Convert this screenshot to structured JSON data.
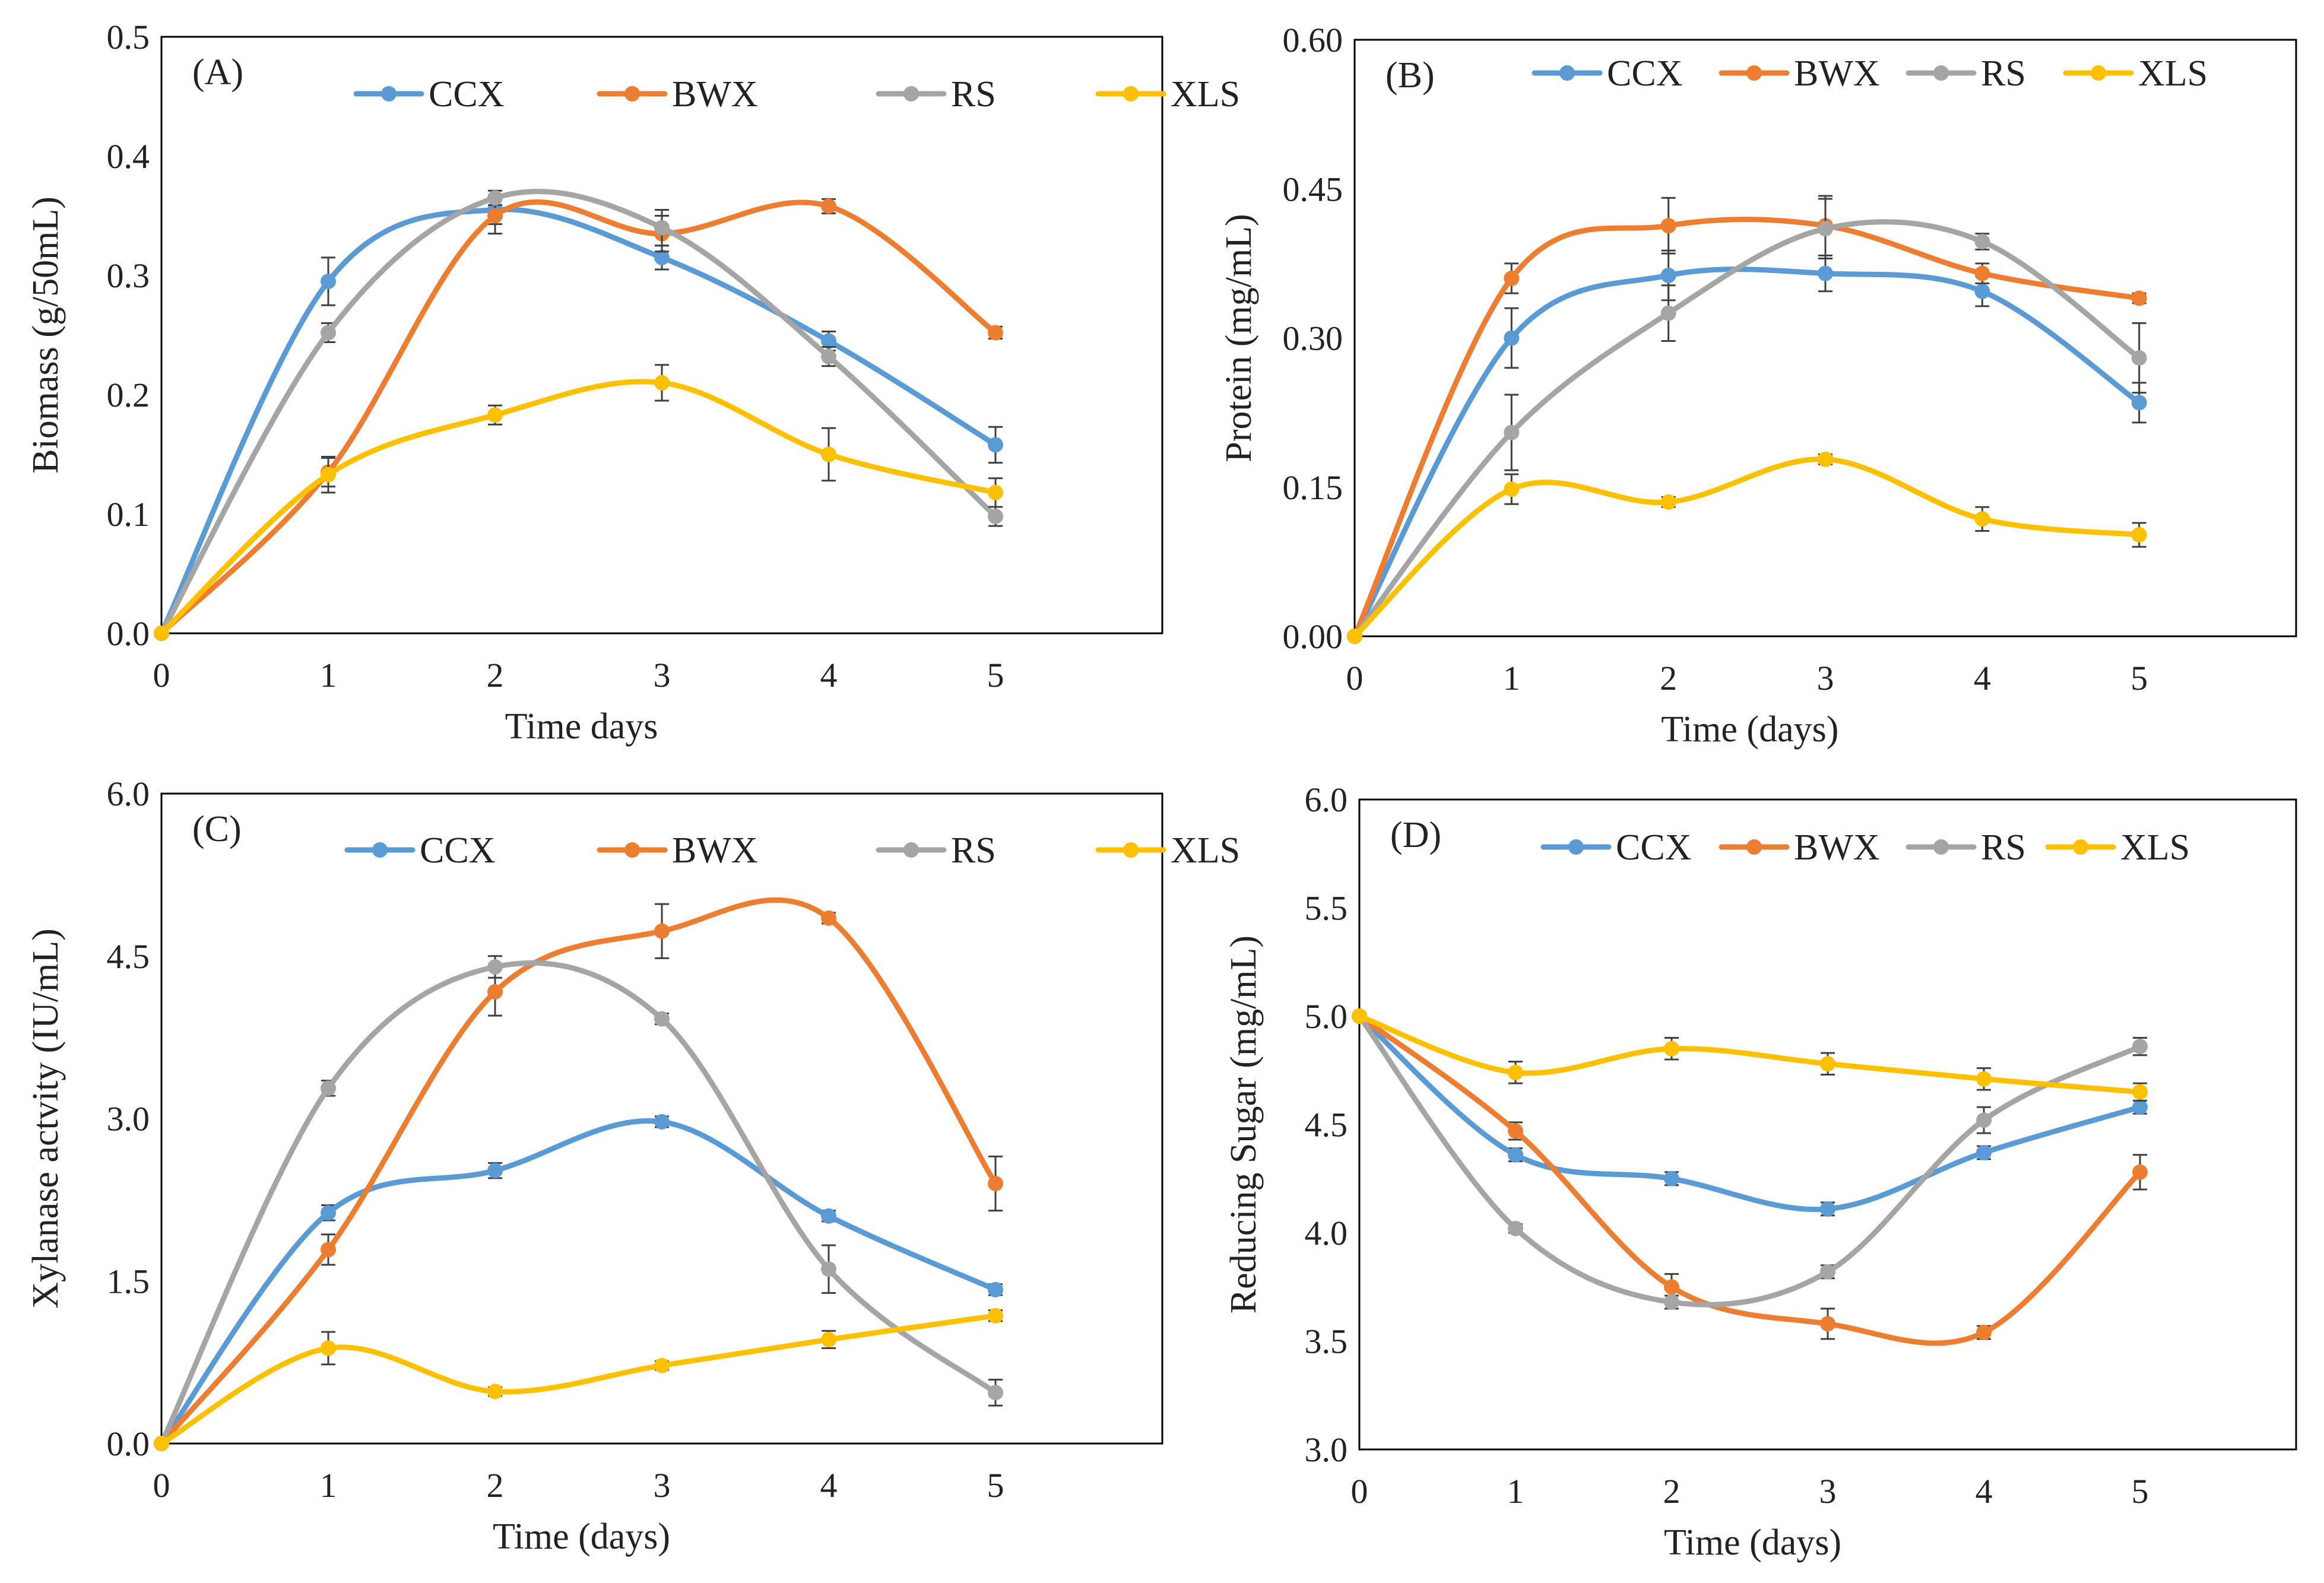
{
  "colors": {
    "CCX": "#5B9BD5",
    "BWX": "#ED7D31",
    "RS": "#A5A5A5",
    "XLS": "#FFC000",
    "error_bar": "#404040",
    "frame": "#000000"
  },
  "chart_data": [
    {
      "type": "line",
      "panel": "(A)",
      "title": "",
      "xlabel": "Time days",
      "ylabel": "Biomass (g/50mL)",
      "x": [
        0,
        1,
        2,
        3,
        4,
        5
      ],
      "x_ticks": [
        "0",
        "1",
        "2",
        "3",
        "4",
        "5"
      ],
      "xlim": [
        0,
        6
      ],
      "ylim": [
        0,
        0.5
      ],
      "y_ticks": [
        "0.0",
        "0.1",
        "0.2",
        "0.3",
        "0.4",
        "0.5"
      ],
      "legend": [
        "CCX",
        "BWX",
        "RS",
        "XLS"
      ],
      "series": [
        {
          "name": "CCX",
          "values": [
            0,
            0.295,
            0.355,
            0.315,
            0.245,
            0.158
          ],
          "errors": [
            0,
            0.02,
            0.012,
            0.01,
            0.008,
            0.015
          ]
        },
        {
          "name": "BWX",
          "values": [
            0,
            0.135,
            0.35,
            0.335,
            0.358,
            0.252
          ],
          "errors": [
            0,
            0.012,
            0.015,
            0.015,
            0.006,
            0.005
          ]
        },
        {
          "name": "RS",
          "values": [
            0,
            0.252,
            0.365,
            0.34,
            0.232,
            0.098
          ],
          "errors": [
            0,
            0.008,
            0.006,
            0.015,
            0.008,
            0.008
          ]
        },
        {
          "name": "XLS",
          "values": [
            0,
            0.133,
            0.183,
            0.21,
            0.15,
            0.118
          ],
          "errors": [
            0,
            0.015,
            0.008,
            0.015,
            0.022,
            0.012
          ]
        }
      ]
    },
    {
      "type": "line",
      "panel": "(B)",
      "title": "",
      "xlabel": "Time (days)",
      "ylabel": "Protein (mg/mL)",
      "x": [
        0,
        1,
        2,
        3,
        4,
        5
      ],
      "x_ticks": [
        "0",
        "1",
        "2",
        "3",
        "4",
        "5"
      ],
      "xlim": [
        0,
        6
      ],
      "ylim": [
        0,
        0.6
      ],
      "y_ticks": [
        "0.00",
        "0.15",
        "0.30",
        "0.45",
        "0.60"
      ],
      "legend": [
        "CCX",
        "BWX",
        "RS",
        "XLS"
      ],
      "series": [
        {
          "name": "CCX",
          "values": [
            0,
            0.3,
            0.363,
            0.365,
            0.347,
            0.235
          ],
          "errors": [
            0,
            0.03,
            0.025,
            0.018,
            0.015,
            0.02
          ]
        },
        {
          "name": "BWX",
          "values": [
            0,
            0.36,
            0.413,
            0.413,
            0.365,
            0.34
          ],
          "errors": [
            0,
            0.015,
            0.028,
            0.03,
            0.01,
            0.005
          ]
        },
        {
          "name": "RS",
          "values": [
            0,
            0.205,
            0.325,
            0.41,
            0.397,
            0.28
          ],
          "errors": [
            0,
            0.038,
            0.028,
            0.03,
            0.008,
            0.035
          ]
        },
        {
          "name": "XLS",
          "values": [
            0,
            0.148,
            0.135,
            0.178,
            0.118,
            0.102
          ],
          "errors": [
            0,
            0.015,
            0.005,
            0.005,
            0.012,
            0.012
          ]
        }
      ]
    },
    {
      "type": "line",
      "panel": "(C)",
      "title": "",
      "xlabel": "Time (days)",
      "ylabel": "Xylanase actvity  (IU/mL)",
      "x": [
        0,
        1,
        2,
        3,
        4,
        5
      ],
      "x_ticks": [
        "0",
        "1",
        "2",
        "3",
        "4",
        "5"
      ],
      "xlim": [
        0,
        6
      ],
      "ylim": [
        0,
        6.0
      ],
      "y_ticks": [
        "0.0",
        "1.5",
        "3.0",
        "4.5",
        "6.0"
      ],
      "legend": [
        "CCX",
        "BWX",
        "RS",
        "XLS"
      ],
      "series": [
        {
          "name": "CCX",
          "values": [
            0,
            2.13,
            2.52,
            2.97,
            2.1,
            1.42
          ],
          "errors": [
            0,
            0.07,
            0.07,
            0.05,
            0.05,
            0.05
          ]
        },
        {
          "name": "BWX",
          "values": [
            0,
            1.79,
            4.17,
            4.73,
            4.85,
            2.4
          ],
          "errors": [
            0,
            0.14,
            0.22,
            0.25,
            0.05,
            0.25
          ]
        },
        {
          "name": "RS",
          "values": [
            0,
            3.28,
            4.4,
            3.92,
            1.61,
            0.47
          ],
          "errors": [
            0,
            0.07,
            0.1,
            0.05,
            0.22,
            0.12
          ]
        },
        {
          "name": "XLS",
          "values": [
            0,
            0.88,
            0.48,
            0.72,
            0.96,
            1.18
          ],
          "errors": [
            0,
            0.15,
            0.04,
            0.04,
            0.08,
            0.05
          ]
        }
      ]
    },
    {
      "type": "line",
      "panel": "(D)",
      "title": "",
      "xlabel": "Time (days)",
      "ylabel": "Reducing Sugar (mg/mL)",
      "x": [
        0,
        1,
        2,
        3,
        4,
        5
      ],
      "x_ticks": [
        "0",
        "1",
        "2",
        "3",
        "4",
        "5"
      ],
      "xlim": [
        0,
        6
      ],
      "ylim": [
        3.0,
        6.0
      ],
      "y_ticks": [
        "3.0",
        "3.5",
        "4.0",
        "4.5",
        "5.0",
        "5.5",
        "6.0"
      ],
      "legend": [
        "CCX",
        "BWX",
        "RS",
        "XLS"
      ],
      "series": [
        {
          "name": "CCX",
          "values": [
            5.0,
            4.36,
            4.25,
            4.11,
            4.37,
            4.58
          ],
          "errors": [
            0,
            0.03,
            0.03,
            0.03,
            0.03,
            0.03
          ]
        },
        {
          "name": "BWX",
          "values": [
            5.0,
            4.47,
            3.75,
            3.58,
            3.54,
            4.28
          ],
          "errors": [
            0,
            0.04,
            0.06,
            0.07,
            0.03,
            0.08
          ]
        },
        {
          "name": "RS",
          "values": [
            5.0,
            4.02,
            3.68,
            3.82,
            4.52,
            4.86
          ],
          "errors": [
            0,
            0.02,
            0.03,
            0.03,
            0.06,
            0.04
          ]
        },
        {
          "name": "XLS",
          "values": [
            5.0,
            4.74,
            4.85,
            4.78,
            4.71,
            4.65
          ],
          "errors": [
            0,
            0.05,
            0.05,
            0.05,
            0.05,
            0.04
          ]
        }
      ]
    }
  ]
}
